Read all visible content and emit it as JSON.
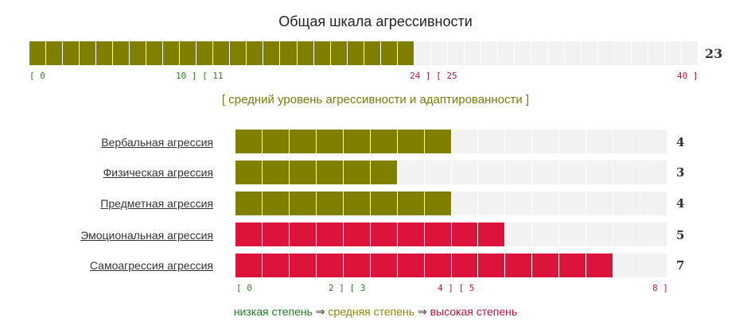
{
  "title": "Общая шкала агрессивности",
  "colors": {
    "olive": "#808000",
    "crimson": "#dc143c",
    "empty": "#f2f2f2"
  },
  "total": {
    "value": "23",
    "score": 23,
    "max": 40,
    "level": "olive",
    "ticks": {
      "t0": "[ 0",
      "t10": "10 ] [ 11",
      "t24": "24 ] [ 25",
      "t40": "40 ]"
    },
    "caption": "[ средний уровень агрессивности и адаптированности ]"
  },
  "scales": [
    {
      "label": "Вербальная агрессия",
      "value": "4",
      "score": 4,
      "level": "olive"
    },
    {
      "label": "Физическая агрессия",
      "value": "3",
      "score": 3,
      "level": "olive"
    },
    {
      "label": "Предметная агрессия",
      "value": "4",
      "score": 4,
      "level": "olive"
    },
    {
      "label": "Эмоциональная агрессия",
      "value": "5",
      "score": 5,
      "level": "crimson"
    },
    {
      "label": "Самоагрессия агрессия",
      "value": "7",
      "score": 7,
      "level": "crimson"
    }
  ],
  "sub_max": 8,
  "sub_ticks": {
    "t0": "[ 0",
    "t2": "2 ] [ 3",
    "t4": "4 ] [ 5",
    "t8": "8 ]"
  },
  "legend": {
    "low": "низкая степень",
    "arrow1": " ⇒ ",
    "mid": "средняя степень",
    "arrow2": " ⇒ ",
    "high": "высокая степень"
  }
}
